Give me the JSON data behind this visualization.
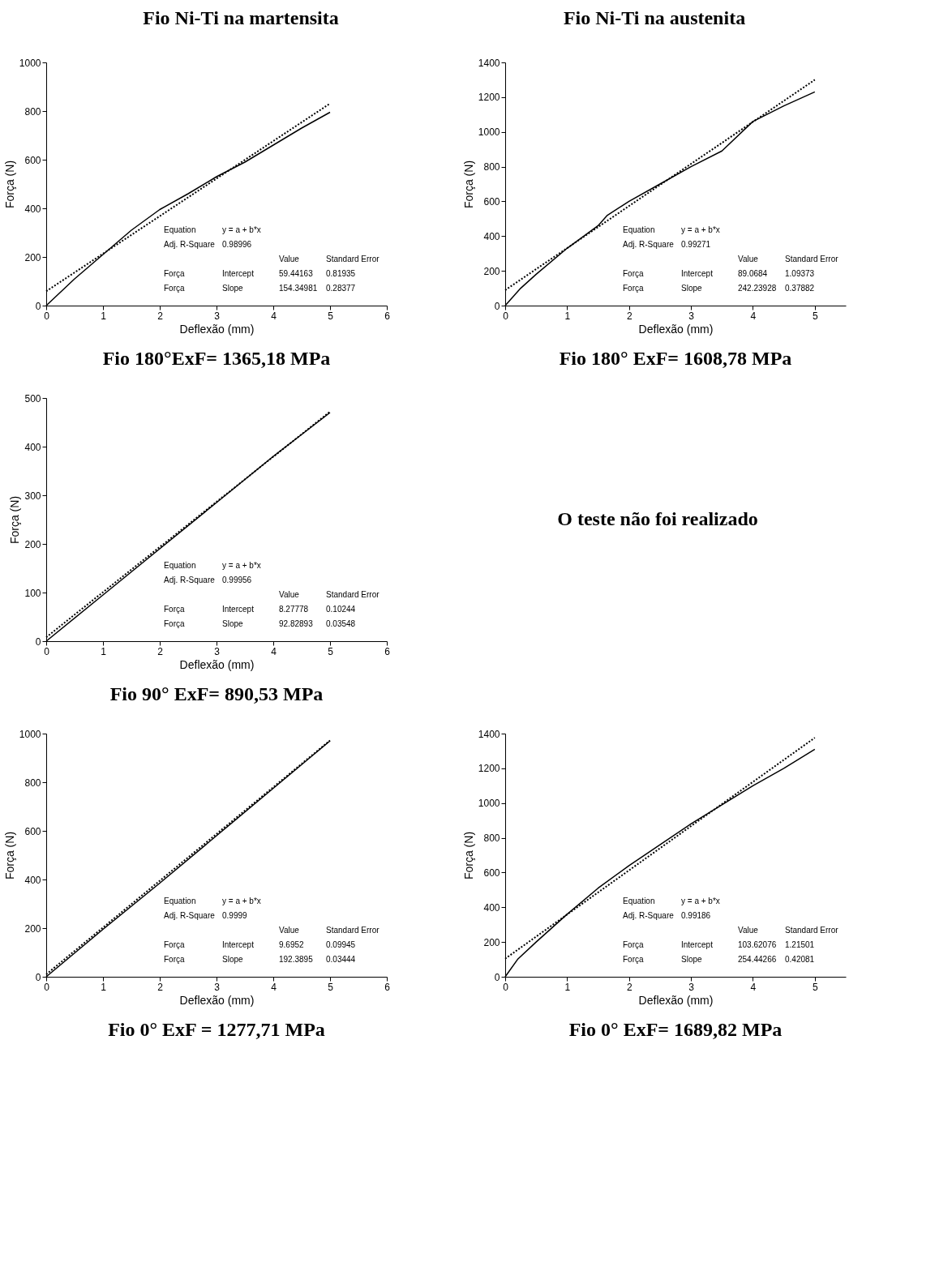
{
  "chart_data": [
    {
      "type": "other",
      "title": "Fio Ni-Ti na martensita"
    },
    {
      "type": "other",
      "title": "Fio Ni-Ti na austenita"
    },
    {
      "type": "line",
      "title": "Fio 180°ExF= 1365,18 MPa",
      "xlabel": "Deflexão (mm)",
      "ylabel": "Força (N)",
      "xlim": [
        0,
        6
      ],
      "xticks": [
        0,
        1,
        2,
        3,
        4,
        5,
        6
      ],
      "ylim": [
        0,
        1000
      ],
      "yticks": [
        0,
        200,
        400,
        600,
        800,
        1000
      ],
      "grid": false,
      "marker": "none",
      "series": [
        {
          "color": "#000000",
          "line_style": "solid",
          "x": [
            0,
            0.5,
            1,
            1.5,
            2,
            2.5,
            3,
            3.5,
            4,
            4.5,
            5
          ],
          "values": [
            0,
            110,
            210,
            310,
            395,
            460,
            530,
            590,
            660,
            730,
            795
          ]
        },
        {
          "color": "#000000",
          "line_style": "dotted",
          "x": [
            0,
            5
          ],
          "values": [
            59,
            831
          ]
        }
      ],
      "annotations": [
        "Equation",
        "y = a + b*x",
        "Adj. R-Square",
        "0.98996",
        "Value",
        "Standard Error",
        "Força",
        "Intercept",
        "59.44163",
        "0.81935",
        "Força",
        "Slope",
        "154.34981",
        "0.28377"
      ]
    },
    {
      "type": "line",
      "title": "Fio 180° ExF= 1608,78 MPa",
      "xlabel": "Deflexão (mm)",
      "ylabel": "Força (N)",
      "xlim": [
        0,
        5.5
      ],
      "xticks": [
        0,
        1,
        2,
        3,
        4,
        5
      ],
      "ylim": [
        0,
        1400
      ],
      "yticks": [
        0,
        200,
        400,
        600,
        800,
        1000,
        1200,
        1400
      ],
      "grid": false,
      "marker": "none",
      "series": [
        {
          "color": "#000000",
          "line_style": "solid",
          "x": [
            0,
            0.25,
            0.5,
            1,
            1.5,
            1.65,
            2,
            2.5,
            3,
            3.5,
            4,
            4.5,
            5
          ],
          "values": [
            0,
            100,
            180,
            330,
            460,
            520,
            600,
            700,
            800,
            890,
            1060,
            1150,
            1230
          ]
        },
        {
          "color": "#000000",
          "line_style": "dotted",
          "x": [
            0,
            5
          ],
          "values": [
            89,
            1300
          ]
        }
      ],
      "annotations": [
        "Equation",
        "y = a + b*x",
        "Adj. R-Square",
        "0.99271",
        "Value",
        "Standard Error",
        "Força",
        "Intercept",
        "89.0684",
        "1.09373",
        "Força",
        "Slope",
        "242.23928",
        "0.37882"
      ]
    },
    {
      "type": "line",
      "title": "Fio 90° ExF= 890,53 MPa",
      "xlabel": "Deflexão (mm)",
      "ylabel": "Força (N)",
      "xlim": [
        0,
        6
      ],
      "xticks": [
        0,
        1,
        2,
        3,
        4,
        5,
        6
      ],
      "ylim": [
        0,
        500
      ],
      "yticks": [
        0,
        100,
        200,
        300,
        400,
        500
      ],
      "grid": false,
      "marker": "none",
      "series": [
        {
          "color": "#000000",
          "line_style": "solid",
          "x": [
            0,
            1,
            2,
            3,
            4,
            5
          ],
          "values": [
            0,
            95,
            190,
            285,
            380,
            470
          ]
        },
        {
          "color": "#000000",
          "line_style": "dotted",
          "x": [
            0,
            5
          ],
          "values": [
            8,
            472
          ]
        }
      ],
      "annotations": [
        "Equation",
        "y = a + b*x",
        "Adj. R-Square",
        "0.99956",
        "Value",
        "Standard Error",
        "Força",
        "Intercept",
        "8.27778",
        "0.10244",
        "Força",
        "Slope",
        "92.82893",
        "0.03548"
      ]
    },
    {
      "type": "other",
      "title": "O teste não foi realizado"
    },
    {
      "type": "line",
      "title": "Fio 0° ExF = 1277,71 MPa",
      "xlabel": "Deflexão (mm)",
      "ylabel": "Força (N)",
      "xlim": [
        0,
        6
      ],
      "xticks": [
        0,
        1,
        2,
        3,
        4,
        5,
        6
      ],
      "ylim": [
        0,
        1000
      ],
      "yticks": [
        0,
        200,
        400,
        600,
        800,
        1000
      ],
      "grid": false,
      "marker": "none",
      "series": [
        {
          "color": "#000000",
          "line_style": "solid",
          "x": [
            0,
            1,
            2,
            3,
            4,
            5
          ],
          "values": [
            0,
            195,
            385,
            580,
            775,
            970
          ]
        },
        {
          "color": "#000000",
          "line_style": "dotted",
          "x": [
            0,
            5
          ],
          "values": [
            10,
            972
          ]
        }
      ],
      "annotations": [
        "Equation",
        "y = a + b*x",
        "Adj. R-Square",
        "0.9999",
        "Value",
        "Standard Error",
        "Força",
        "Intercept",
        "9.6952",
        "0.09945",
        "Força",
        "Slope",
        "192.3895",
        "0.03444"
      ]
    },
    {
      "type": "line",
      "title": "Fio 0° ExF= 1689,82 MPa",
      "xlabel": "Deflexão (mm)",
      "ylabel": "Força (N)",
      "xlim": [
        0,
        5.5
      ],
      "xticks": [
        0,
        1,
        2,
        3,
        4,
        5
      ],
      "ylim": [
        0,
        1400
      ],
      "yticks": [
        0,
        200,
        400,
        600,
        800,
        1000,
        1200,
        1400
      ],
      "grid": false,
      "marker": "none",
      "series": [
        {
          "color": "#000000",
          "line_style": "solid",
          "x": [
            0,
            0.2,
            0.5,
            1,
            1.5,
            2,
            2.5,
            3,
            3.5,
            4,
            4.5,
            5
          ],
          "values": [
            0,
            100,
            200,
            360,
            510,
            640,
            760,
            880,
            990,
            1100,
            1200,
            1310
          ]
        },
        {
          "color": "#000000",
          "line_style": "dotted",
          "x": [
            0,
            5
          ],
          "values": [
            104,
            1376
          ]
        }
      ],
      "annotations": [
        "Equation",
        "y = a + b*x",
        "Adj. R-Square",
        "0.99186",
        "Value",
        "Standard Error",
        "Força",
        "Intercept",
        "103.62076",
        "1.21501",
        "Força",
        "Slope",
        "254.44266",
        "0.42081"
      ]
    }
  ]
}
